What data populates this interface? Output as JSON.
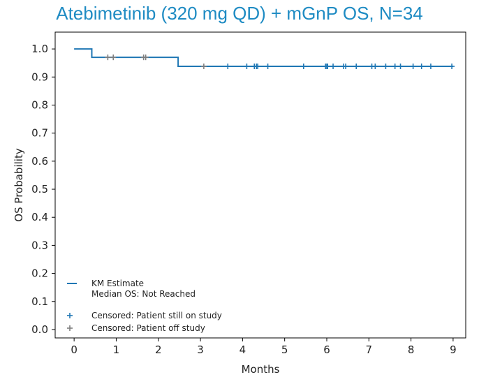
{
  "chart_data": {
    "type": "line",
    "title": "Atebimetinib (320 mg QD) + mGnP OS, N=34",
    "xlabel": "Months",
    "ylabel": "OS Probability",
    "xlim": [
      -0.45,
      9.3
    ],
    "ylim": [
      -0.03,
      1.06
    ],
    "x_ticks": [
      0,
      1,
      2,
      3,
      4,
      5,
      6,
      7,
      8,
      9
    ],
    "y_ticks": [
      0.0,
      0.1,
      0.2,
      0.3,
      0.4,
      0.5,
      0.6,
      0.7,
      0.8,
      0.9,
      1.0
    ],
    "grid": false,
    "legend_position": "bottom-left",
    "colors": {
      "km": "#1f77b4",
      "censored_on": "#1f77b4",
      "censored_off": "#7f7f7f",
      "title": "#1e8bc3"
    },
    "series": [
      {
        "name": "KM Estimate",
        "subtitle": "Median OS: Not Reached",
        "kind": "step",
        "x": [
          0,
          0.42,
          0.42,
          2.47,
          2.47,
          9.0
        ],
        "y": [
          1.0,
          1.0,
          0.97,
          0.97,
          0.938,
          0.938
        ]
      },
      {
        "name": "Censored: Patient still on study",
        "kind": "censor",
        "x": [
          3.65,
          4.1,
          4.28,
          4.33,
          4.36,
          4.6,
          5.45,
          5.97,
          6.0,
          6.02,
          6.15,
          6.4,
          6.45,
          6.7,
          7.07,
          7.15,
          7.4,
          7.62,
          7.75,
          8.05,
          8.25,
          8.47,
          8.97
        ],
        "y": [
          0.938,
          0.938,
          0.938,
          0.938,
          0.938,
          0.938,
          0.938,
          0.938,
          0.938,
          0.938,
          0.938,
          0.938,
          0.938,
          0.938,
          0.938,
          0.938,
          0.938,
          0.938,
          0.938,
          0.938,
          0.938,
          0.938,
          0.938
        ]
      },
      {
        "name": "Censored: Patient off study",
        "kind": "censor",
        "x": [
          0.8,
          0.93,
          1.65,
          1.7,
          3.08
        ],
        "y": [
          0.97,
          0.97,
          0.97,
          0.97,
          0.938
        ]
      }
    ]
  }
}
